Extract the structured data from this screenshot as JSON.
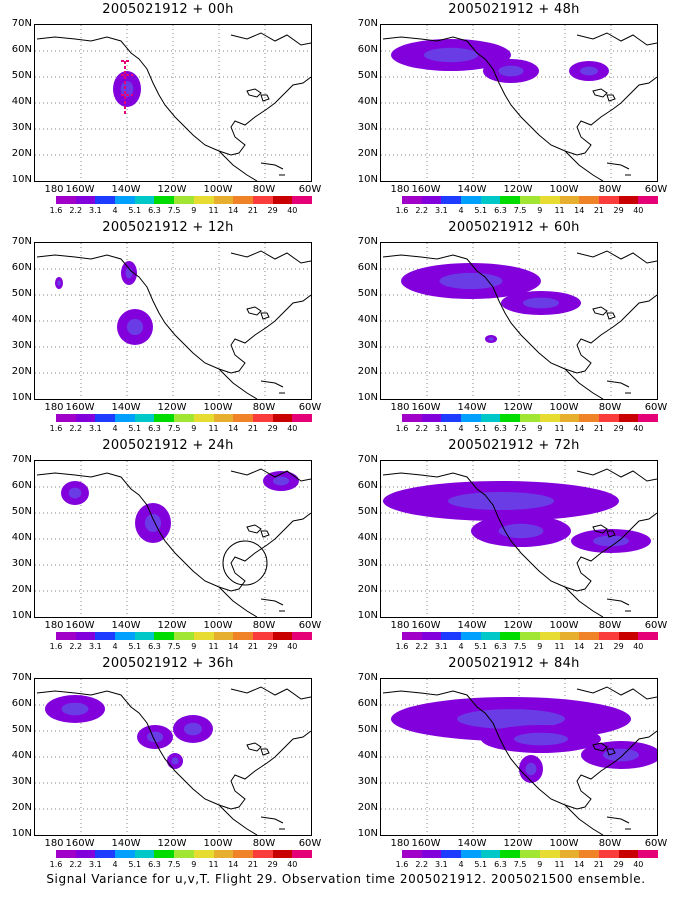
{
  "panels": [
    {
      "title": "2005021912 + 00h"
    },
    {
      "title": "2005021912 + 48h"
    },
    {
      "title": "2005021912 + 12h"
    },
    {
      "title": "2005021912 + 60h"
    },
    {
      "title": "2005021912 + 24h"
    },
    {
      "title": "2005021912 + 72h"
    },
    {
      "title": "2005021912 + 36h"
    },
    {
      "title": "2005021912 + 84h"
    }
  ],
  "lat_labels": [
    "70N",
    "60N",
    "50N",
    "40N",
    "30N",
    "20N",
    "10N"
  ],
  "lon_labels": [
    "180",
    "160W",
    "140W",
    "120W",
    "100W",
    "80W",
    "60W"
  ],
  "colorbar": {
    "labels": [
      "1.6",
      "2.2",
      "3.1",
      "4",
      "5.1",
      "6.3",
      "7.5",
      "9",
      "11",
      "14",
      "21",
      "29",
      "40"
    ],
    "colors": [
      "#a000c8",
      "#8200dc",
      "#1e3cff",
      "#00a0ff",
      "#00c8c8",
      "#00dc00",
      "#a0e632",
      "#e6dc32",
      "#e6af2d",
      "#f08228",
      "#fa3c3c",
      "#c80000",
      "#e60078"
    ]
  },
  "caption": "Signal Variance for u,v,T. Flight 29. Observation time 2005021912. 2005021500 ensemble."
}
